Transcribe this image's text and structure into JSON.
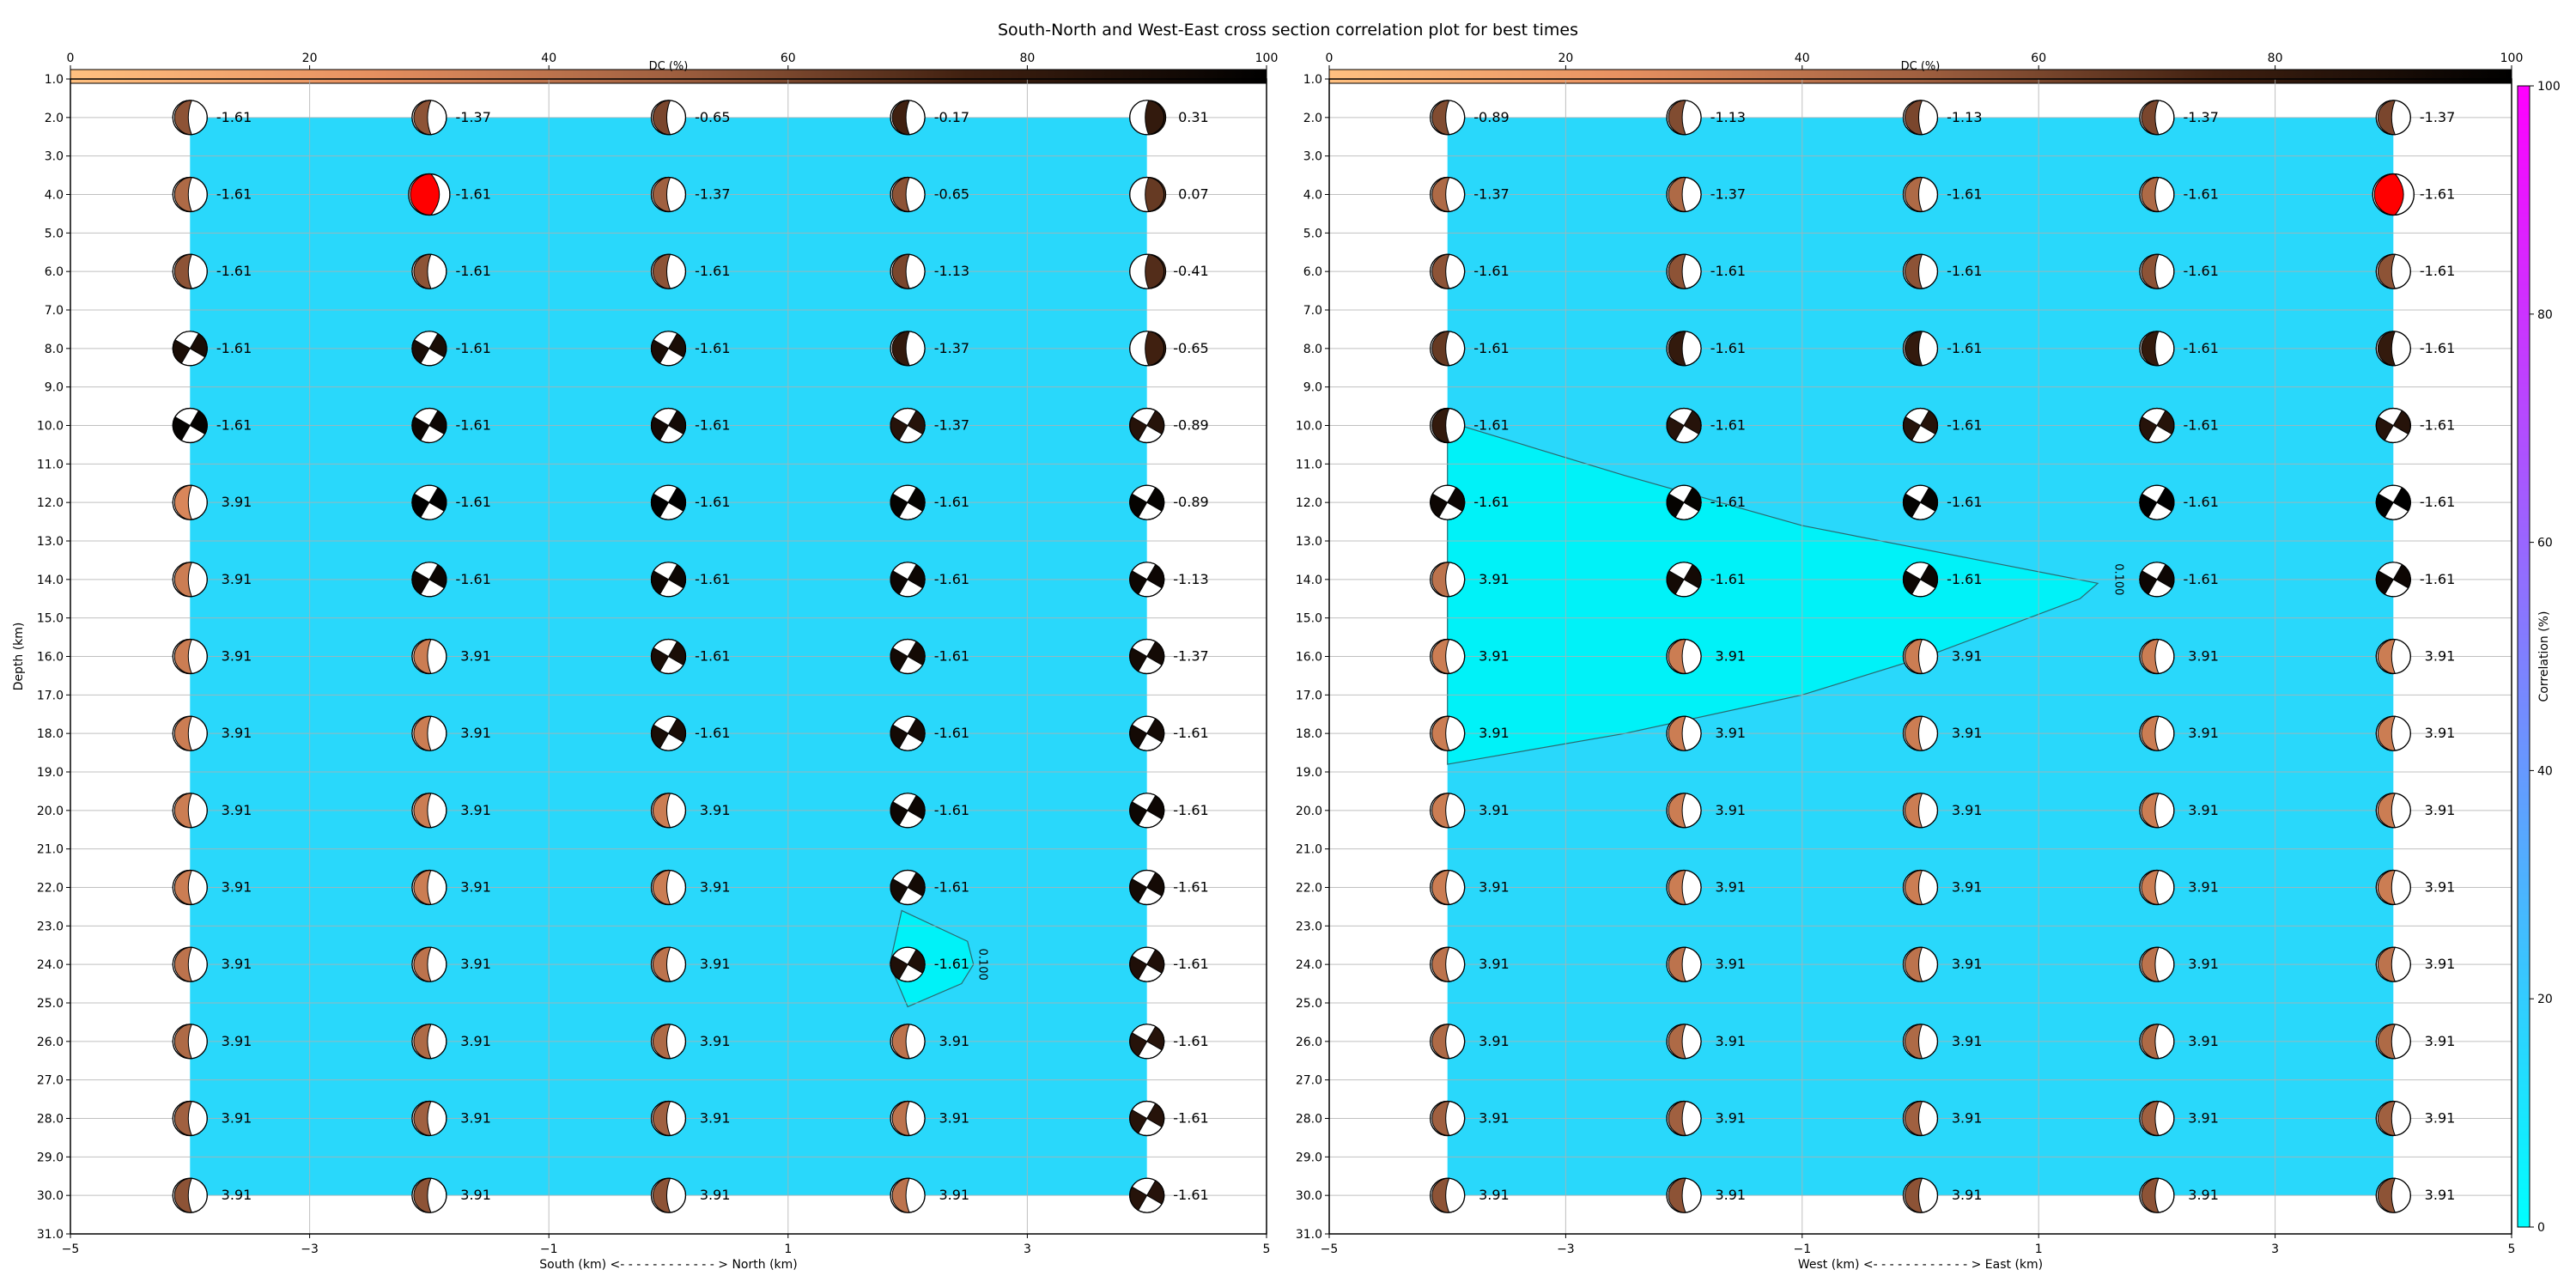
{
  "figure": {
    "title": "South-North and West-East cross section correlation plot for best times"
  },
  "colors": {
    "background_region": "#29d8fb",
    "contour_fill": "#00f2f8",
    "best_solution": "#ff0000",
    "grid": "#b0b0b0",
    "dc_colormap": [
      "#ffc080",
      "#e79060",
      "#a06040",
      "#402010",
      "#000000"
    ],
    "correlation_colormap": [
      "#00ffff",
      "#ff00ff"
    ]
  },
  "chart_data": [
    {
      "type": "scatter",
      "title": "",
      "xlabel": "South (km) <- - - - - - - - - - - - > North (km)",
      "ylabel": "Depth (km)",
      "xlim": [
        -5,
        5
      ],
      "ylim": [
        31.0,
        1.0
      ],
      "xticks": [
        "−5",
        "−3",
        "−1",
        "1",
        "3",
        "5"
      ],
      "yticks": [
        "1.0",
        "2.0",
        "3.0",
        "4.0",
        "5.0",
        "6.0",
        "7.0",
        "8.0",
        "9.0",
        "10.0",
        "11.0",
        "12.0",
        "13.0",
        "14.0",
        "15.0",
        "16.0",
        "17.0",
        "18.0",
        "19.0",
        "20.0",
        "21.0",
        "22.0",
        "23.0",
        "24.0",
        "25.0",
        "26.0",
        "27.0",
        "28.0",
        "29.0",
        "30.0",
        "31.0"
      ],
      "grid": true,
      "colorbar_top": {
        "label": "DC (%)",
        "range": [
          0,
          100
        ],
        "ticks": [
          "0",
          "20",
          "40",
          "60",
          "80",
          "100"
        ]
      },
      "x": [
        -4,
        -2,
        0,
        2,
        4
      ],
      "depths": [
        2,
        4,
        6,
        8,
        10,
        12,
        14,
        16,
        18,
        20,
        22,
        24,
        26,
        28,
        30
      ],
      "labels": [
        [
          "-1.61",
          "-1.37",
          "-0.65",
          "-0.17",
          "0.31"
        ],
        [
          "-1.61",
          "-1.61",
          "-1.37",
          "-0.65",
          "0.07"
        ],
        [
          "-1.61",
          "-1.61",
          "-1.61",
          "-1.13",
          "-0.41"
        ],
        [
          "-1.61",
          "-1.61",
          "-1.61",
          "-1.37",
          "-0.65"
        ],
        [
          "-1.61",
          "-1.61",
          "-1.61",
          "-1.37",
          "-0.89"
        ],
        [
          "3.91",
          "-1.61",
          "-1.61",
          "-1.61",
          "-0.89"
        ],
        [
          "3.91",
          "-1.61",
          "-1.61",
          "-1.61",
          "-1.13"
        ],
        [
          "3.91",
          "3.91",
          "-1.61",
          "-1.61",
          "-1.37"
        ],
        [
          "3.91",
          "3.91",
          "-1.61",
          "-1.61",
          "-1.61"
        ],
        [
          "3.91",
          "3.91",
          "3.91",
          "-1.61",
          "-1.61"
        ],
        [
          "3.91",
          "3.91",
          "3.91",
          "-1.61",
          "-1.61"
        ],
        [
          "3.91",
          "3.91",
          "3.91",
          "-1.61",
          "-1.61"
        ],
        [
          "3.91",
          "3.91",
          "3.91",
          "3.91",
          "-1.61"
        ],
        [
          "3.91",
          "3.91",
          "3.91",
          "3.91",
          "-1.61"
        ],
        [
          "3.91",
          "3.91",
          "3.91",
          "3.91",
          "-1.61"
        ]
      ],
      "dc": [
        [
          55,
          55,
          60,
          75,
          80
        ],
        [
          45,
          50,
          50,
          55,
          65
        ],
        [
          55,
          55,
          55,
          60,
          70
        ],
        [
          90,
          90,
          90,
          80,
          75
        ],
        [
          98,
          95,
          92,
          85,
          85
        ],
        [
          30,
          100,
          100,
          98,
          98
        ],
        [
          35,
          95,
          95,
          95,
          95
        ],
        [
          35,
          35,
          90,
          92,
          92
        ],
        [
          35,
          35,
          90,
          92,
          92
        ],
        [
          35,
          35,
          35,
          95,
          95
        ],
        [
          35,
          35,
          35,
          92,
          92
        ],
        [
          40,
          40,
          40,
          88,
          88
        ],
        [
          45,
          45,
          45,
          40,
          85
        ],
        [
          50,
          50,
          50,
          40,
          85
        ],
        [
          55,
          55,
          55,
          40,
          85
        ]
      ],
      "best": {
        "x": -2,
        "depth": 4
      },
      "contour": {
        "level": "0.100",
        "polygon": [
          [
            1.95,
            22.6
          ],
          [
            2.5,
            23.4
          ],
          [
            2.55,
            24.0
          ],
          [
            2.45,
            24.5
          ],
          [
            2.0,
            25.1
          ],
          [
            1.85,
            24.0
          ]
        ],
        "label_at": [
          2.6,
          24.0
        ]
      }
    },
    {
      "type": "scatter",
      "title": "",
      "xlabel": "West (km) <- - - - - - - - - - - - > East (km)",
      "ylabel": "",
      "xlim": [
        -5,
        5
      ],
      "ylim": [
        31.0,
        1.0
      ],
      "xticks": [
        "−5",
        "−3",
        "−1",
        "1",
        "3",
        "5"
      ],
      "yticks": [
        "1.0",
        "2.0",
        "3.0",
        "4.0",
        "5.0",
        "6.0",
        "7.0",
        "8.0",
        "9.0",
        "10.0",
        "11.0",
        "12.0",
        "13.0",
        "14.0",
        "15.0",
        "16.0",
        "17.0",
        "18.0",
        "19.0",
        "20.0",
        "21.0",
        "22.0",
        "23.0",
        "24.0",
        "25.0",
        "26.0",
        "27.0",
        "28.0",
        "29.0",
        "30.0",
        "31.0"
      ],
      "grid": true,
      "colorbar_top": {
        "label": "DC (%)",
        "range": [
          0,
          100
        ],
        "ticks": [
          "0",
          "20",
          "40",
          "60",
          "80",
          "100"
        ]
      },
      "colorbar_right": {
        "label": "Correlation (%)",
        "range": [
          0,
          100
        ],
        "ticks": [
          "0",
          "20",
          "40",
          "60",
          "80",
          "100"
        ]
      },
      "x": [
        -4,
        -2,
        0,
        2,
        4
      ],
      "depths": [
        2,
        4,
        6,
        8,
        10,
        12,
        14,
        16,
        18,
        20,
        22,
        24,
        26,
        28,
        30
      ],
      "labels": [
        [
          "-0.89",
          "-1.13",
          "-1.13",
          "-1.37",
          "-1.37"
        ],
        [
          "-1.37",
          "-1.37",
          "-1.61",
          "-1.61",
          "-1.61"
        ],
        [
          "-1.61",
          "-1.61",
          "-1.61",
          "-1.61",
          "-1.61"
        ],
        [
          "-1.61",
          "-1.61",
          "-1.61",
          "-1.61",
          "-1.61"
        ],
        [
          "-1.61",
          "-1.61",
          "-1.61",
          "-1.61",
          "-1.61"
        ],
        [
          "-1.61",
          "-1.61",
          "-1.61",
          "-1.61",
          "-1.61"
        ],
        [
          "3.91",
          "-1.61",
          "-1.61",
          "-1.61",
          "-1.61"
        ],
        [
          "3.91",
          "3.91",
          "3.91",
          "3.91",
          "3.91"
        ],
        [
          "3.91",
          "3.91",
          "3.91",
          "3.91",
          "3.91"
        ],
        [
          "3.91",
          "3.91",
          "3.91",
          "3.91",
          "3.91"
        ],
        [
          "3.91",
          "3.91",
          "3.91",
          "3.91",
          "3.91"
        ],
        [
          "3.91",
          "3.91",
          "3.91",
          "3.91",
          "3.91"
        ],
        [
          "3.91",
          "3.91",
          "3.91",
          "3.91",
          "3.91"
        ],
        [
          "3.91",
          "3.91",
          "3.91",
          "3.91",
          "3.91"
        ],
        [
          "3.91",
          "3.91",
          "3.91",
          "3.91",
          "3.91"
        ]
      ],
      "dc": [
        [
          58,
          58,
          60,
          60,
          60
        ],
        [
          45,
          45,
          45,
          45,
          45
        ],
        [
          55,
          55,
          55,
          55,
          55
        ],
        [
          65,
          80,
          80,
          80,
          80
        ],
        [
          80,
          85,
          85,
          85,
          85
        ],
        [
          95,
          98,
          98,
          100,
          100
        ],
        [
          40,
          92,
          95,
          95,
          95
        ],
        [
          35,
          35,
          35,
          35,
          35
        ],
        [
          35,
          35,
          35,
          35,
          35
        ],
        [
          35,
          35,
          35,
          35,
          35
        ],
        [
          35,
          35,
          35,
          35,
          35
        ],
        [
          40,
          40,
          40,
          40,
          40
        ],
        [
          45,
          45,
          45,
          45,
          45
        ],
        [
          50,
          50,
          50,
          50,
          50
        ],
        [
          55,
          55,
          55,
          55,
          55
        ]
      ],
      "best": {
        "x": 4,
        "depth": 4
      },
      "contour": {
        "level": "0.100",
        "polygon": [
          [
            -4,
            9.9
          ],
          [
            -2.5,
            11.3
          ],
          [
            -1,
            12.6
          ],
          [
            0.5,
            13.5
          ],
          [
            1.5,
            14.1
          ],
          [
            1.35,
            14.5
          ],
          [
            0.05,
            16.0
          ],
          [
            -1,
            17.0
          ],
          [
            -2.5,
            18.0
          ],
          [
            -4,
            18.8
          ]
        ],
        "label_at": [
          1.65,
          14.0
        ]
      }
    }
  ]
}
